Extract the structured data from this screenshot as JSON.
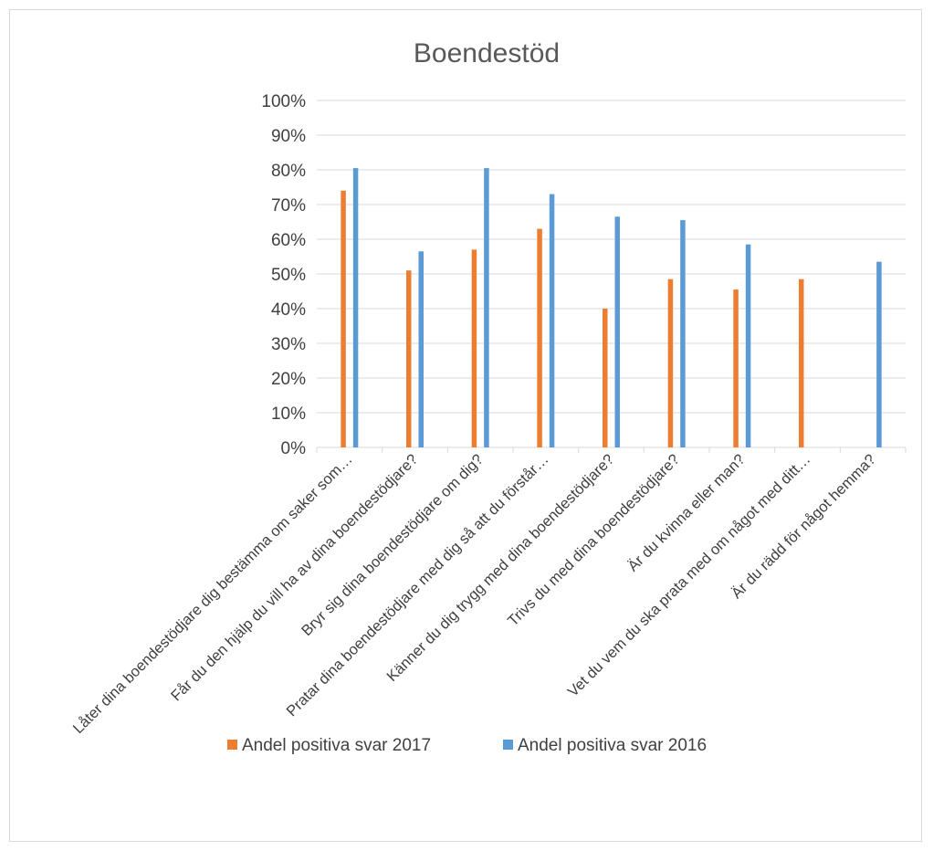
{
  "chart_data": {
    "type": "bar",
    "title": "Boendestöd",
    "xlabel": "",
    "ylabel": "",
    "ylim": [
      0,
      100
    ],
    "y_ticks": [
      "0%",
      "10%",
      "20%",
      "30%",
      "40%",
      "50%",
      "60%",
      "70%",
      "80%",
      "90%",
      "100%"
    ],
    "grid": true,
    "legend_position": "bottom",
    "categories": [
      "Låter dina boendestödjare dig bestämma om saker som…",
      "Får du den hjälp du vill ha av dina boendestödjare?",
      "Bryr sig dina boendestödjare om dig?",
      "Pratar dina boendestödjare med dig så att du förstår…",
      "Känner du dig trygg med dina boendestödjare?",
      "Trivs du med dina boendestödjare?",
      "Är du kvinna eller man?",
      "Vet du vem du ska prata med om något med ditt…",
      "Är du rädd för något hemma?"
    ],
    "series": [
      {
        "name": "Andel positiva svar 2017",
        "color": "#ED7D31",
        "values": [
          74,
          51,
          57,
          63,
          40,
          48.5,
          45.5,
          48.5,
          null
        ]
      },
      {
        "name": "Andel positiva svar 2016",
        "color": "#5B9BD5",
        "values": [
          80.5,
          56.5,
          80.5,
          73,
          66.5,
          65.5,
          58.5,
          null,
          53.5
        ]
      }
    ]
  }
}
